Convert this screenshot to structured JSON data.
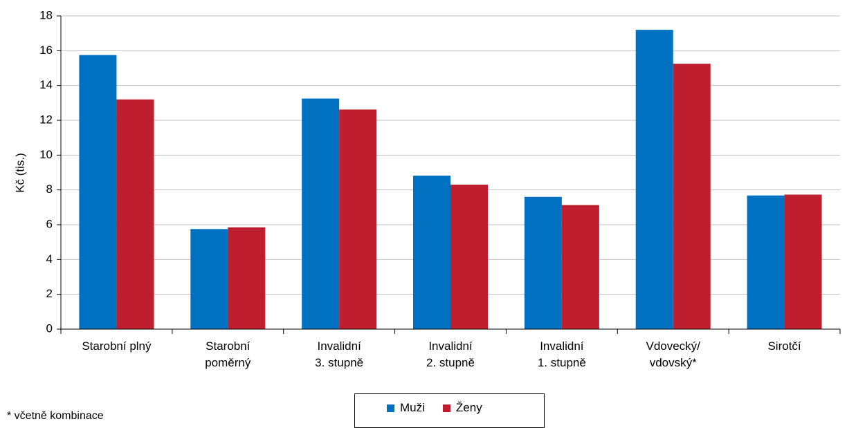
{
  "chart_data": {
    "type": "bar",
    "ylabel": "Kč (tis.)",
    "xlabel": "",
    "ylim": [
      0,
      18
    ],
    "yticks": [
      0,
      2,
      4,
      6,
      8,
      10,
      12,
      14,
      16,
      18
    ],
    "grid": true,
    "legend_position": "bottom",
    "categories": [
      [
        "Starobní plný"
      ],
      [
        "Starobní",
        "poměrný"
      ],
      [
        "Invalidní",
        "3. stupně"
      ],
      [
        "Invalidní",
        "2. stupně"
      ],
      [
        "Invalidní",
        "1. stupně"
      ],
      [
        "Vdovecký/",
        "vdovský*"
      ],
      [
        "Sirotčí"
      ]
    ],
    "series": [
      {
        "name": "Muži",
        "color": "#0070C0",
        "values": [
          15.75,
          5.75,
          13.25,
          8.82,
          7.6,
          17.2,
          7.68
        ]
      },
      {
        "name": "Ženy",
        "color": "#BE1E2D",
        "values": [
          13.2,
          5.85,
          12.62,
          8.3,
          7.13,
          15.25,
          7.73
        ]
      }
    ]
  },
  "legend": {
    "items": [
      "Muži",
      "Ženy"
    ]
  },
  "footnote": "* včetně kombinace"
}
